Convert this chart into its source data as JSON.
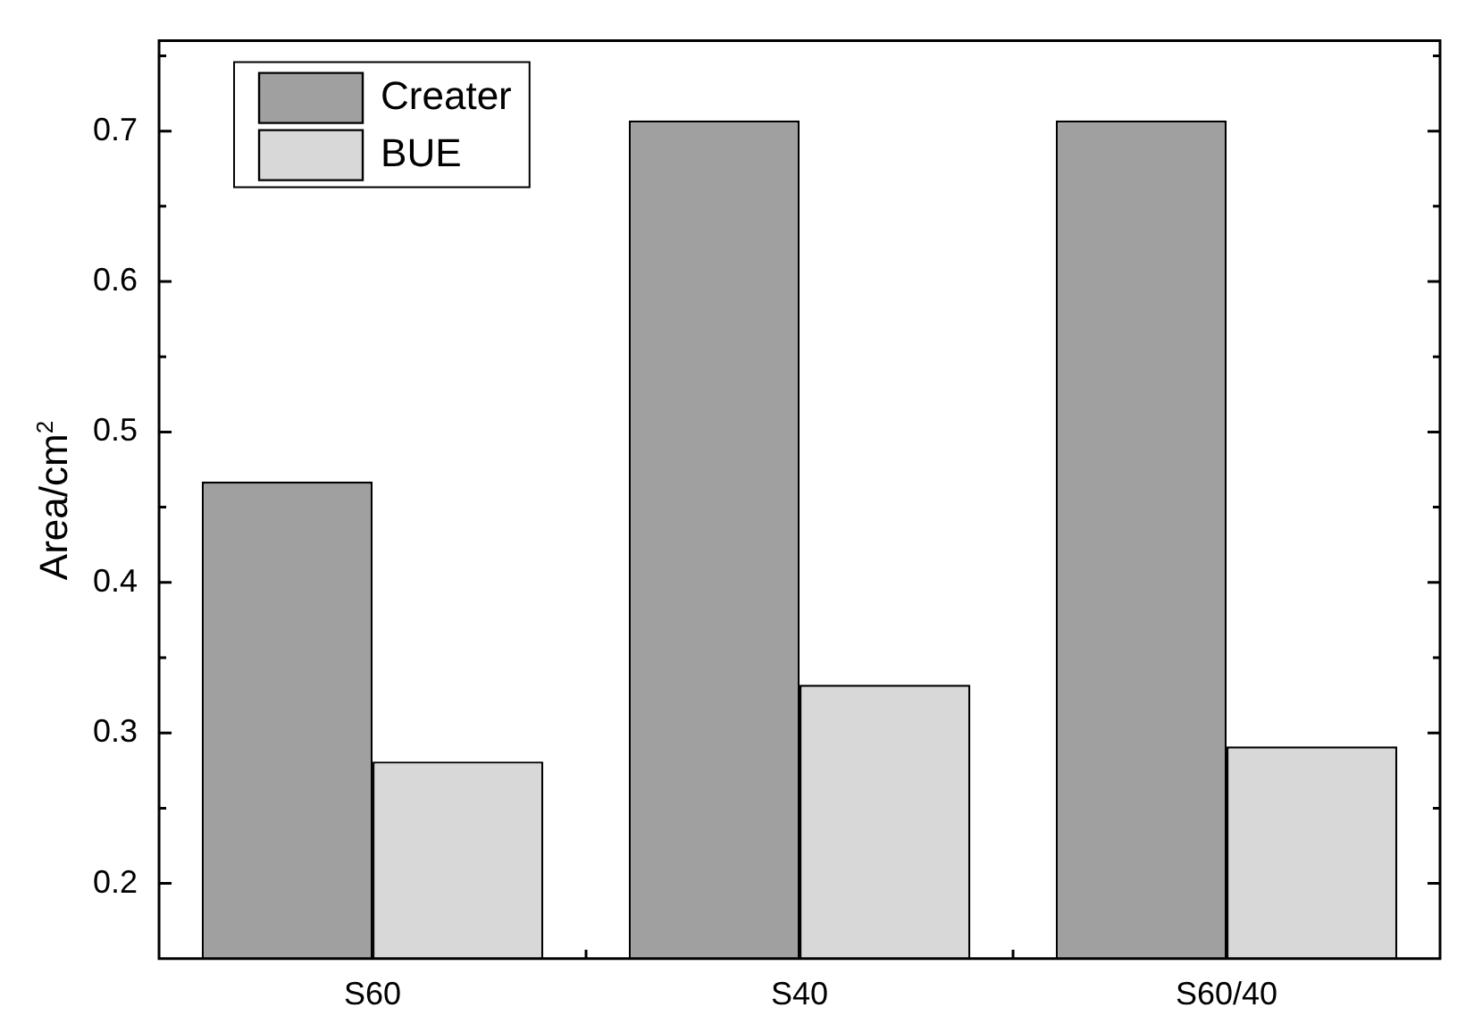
{
  "chart_data": {
    "type": "bar",
    "ylabel": "Area/cm$^{2}$",
    "categories": [
      "S60",
      "S40",
      "S60/40"
    ],
    "series": [
      {
        "name": "Creater",
        "color": "#a0a0a0",
        "values": [
          0.467,
          0.707,
          0.707
        ]
      },
      {
        "name": "BUE",
        "color": "#d8d8d8",
        "values": [
          0.281,
          0.332,
          0.291
        ]
      }
    ],
    "ylim": [
      0.15,
      0.76
    ],
    "yticks": [
      0.2,
      {
        "value": 0.25,
        "label": null
      },
      0.3,
      {
        "value": 0.35,
        "label": null
      },
      0.4,
      {
        "value": 0.45,
        "label": null
      },
      0.5,
      {
        "value": 0.55,
        "label": null
      },
      0.6,
      {
        "value": 0.65,
        "label": null
      },
      0.7,
      {
        "value": 0.75,
        "label": null
      }
    ],
    "grid": false,
    "legend": "top left"
  }
}
